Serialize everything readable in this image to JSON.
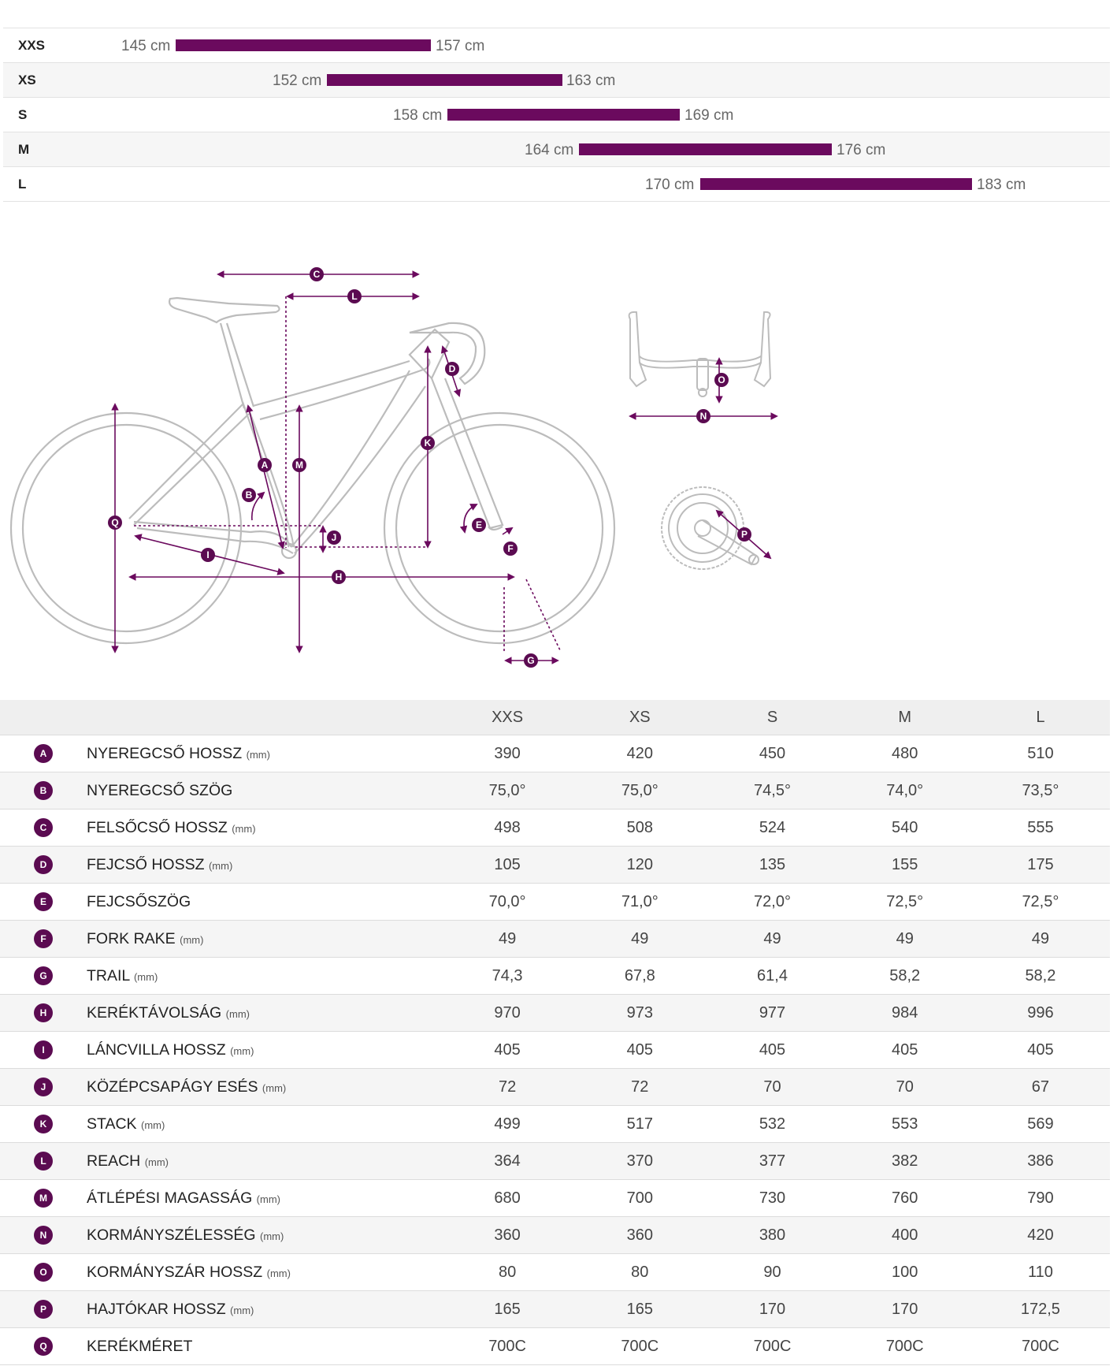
{
  "size_chart": [
    {
      "size": "XXS",
      "min_cm": 145,
      "max_cm": 157,
      "min_label": "145 cm",
      "max_label": "157 cm"
    },
    {
      "size": "XS",
      "min_cm": 152,
      "max_cm": 163,
      "min_label": "152 cm",
      "max_label": "163 cm"
    },
    {
      "size": "S",
      "min_cm": 158,
      "max_cm": 169,
      "min_label": "158 cm",
      "max_label": "169 cm"
    },
    {
      "size": "M",
      "min_cm": 164,
      "max_cm": 176,
      "min_label": "164 cm",
      "max_label": "176 cm"
    },
    {
      "size": "L",
      "min_cm": 170,
      "max_cm": 183,
      "min_label": "170 cm",
      "max_label": "183 cm"
    }
  ],
  "diagram_labels": [
    "A",
    "B",
    "C",
    "D",
    "E",
    "F",
    "G",
    "H",
    "I",
    "J",
    "K",
    "L",
    "M",
    "N",
    "O",
    "P",
    "Q"
  ],
  "table": {
    "columns": [
      "XXS",
      "XS",
      "S",
      "M",
      "L"
    ],
    "rows": [
      {
        "badge": "A",
        "name": "NYEREGCSŐ HOSSZ",
        "unit": "(mm)",
        "values": [
          "390",
          "420",
          "450",
          "480",
          "510"
        ]
      },
      {
        "badge": "B",
        "name": "NYEREGCSŐ SZÖG",
        "unit": "",
        "values": [
          "75,0°",
          "75,0°",
          "74,5°",
          "74,0°",
          "73,5°"
        ]
      },
      {
        "badge": "C",
        "name": "FELSŐCSŐ HOSSZ",
        "unit": "(mm)",
        "values": [
          "498",
          "508",
          "524",
          "540",
          "555"
        ]
      },
      {
        "badge": "D",
        "name": "FEJCSŐ HOSSZ",
        "unit": "(mm)",
        "values": [
          "105",
          "120",
          "135",
          "155",
          "175"
        ]
      },
      {
        "badge": "E",
        "name": "FEJCSŐSZÖG",
        "unit": "",
        "values": [
          "70,0°",
          "71,0°",
          "72,0°",
          "72,5°",
          "72,5°"
        ]
      },
      {
        "badge": "F",
        "name": "FORK RAKE",
        "unit": "(mm)",
        "values": [
          "49",
          "49",
          "49",
          "49",
          "49"
        ]
      },
      {
        "badge": "G",
        "name": "TRAIL",
        "unit": "(mm)",
        "values": [
          "74,3",
          "67,8",
          "61,4",
          "58,2",
          "58,2"
        ]
      },
      {
        "badge": "H",
        "name": "KERÉKTÁVOLSÁG",
        "unit": "(mm)",
        "values": [
          "970",
          "973",
          "977",
          "984",
          "996"
        ]
      },
      {
        "badge": "I",
        "name": "LÁNCVILLA HOSSZ",
        "unit": "(mm)",
        "values": [
          "405",
          "405",
          "405",
          "405",
          "405"
        ]
      },
      {
        "badge": "J",
        "name": "KÖZÉPCSAPÁGY ESÉS",
        "unit": "(mm)",
        "values": [
          "72",
          "72",
          "70",
          "70",
          "67"
        ]
      },
      {
        "badge": "K",
        "name": "STACK",
        "unit": "(mm)",
        "values": [
          "499",
          "517",
          "532",
          "553",
          "569"
        ]
      },
      {
        "badge": "L",
        "name": "REACH",
        "unit": "(mm)",
        "values": [
          "364",
          "370",
          "377",
          "382",
          "386"
        ]
      },
      {
        "badge": "M",
        "name": "ÁTLÉPÉSI MAGASSÁG",
        "unit": "(mm)",
        "values": [
          "680",
          "700",
          "730",
          "760",
          "790"
        ]
      },
      {
        "badge": "N",
        "name": "KORMÁNYSZÉLESSÉG",
        "unit": "(mm)",
        "values": [
          "360",
          "360",
          "380",
          "400",
          "420"
        ]
      },
      {
        "badge": "O",
        "name": "KORMÁNYSZÁR HOSSZ",
        "unit": "(mm)",
        "values": [
          "80",
          "80",
          "90",
          "100",
          "110"
        ]
      },
      {
        "badge": "P",
        "name": "HAJTÓKAR HOSSZ",
        "unit": "(mm)",
        "values": [
          "165",
          "165",
          "170",
          "170",
          "172,5"
        ]
      },
      {
        "badge": "Q",
        "name": "KERÉKMÉRET",
        "unit": "",
        "values": [
          "700C",
          "700C",
          "700C",
          "700C",
          "700C"
        ]
      }
    ]
  },
  "colors": {
    "accent": "#6b0a5e",
    "badge": "#5b0b51",
    "line": "#bbbbbb"
  }
}
